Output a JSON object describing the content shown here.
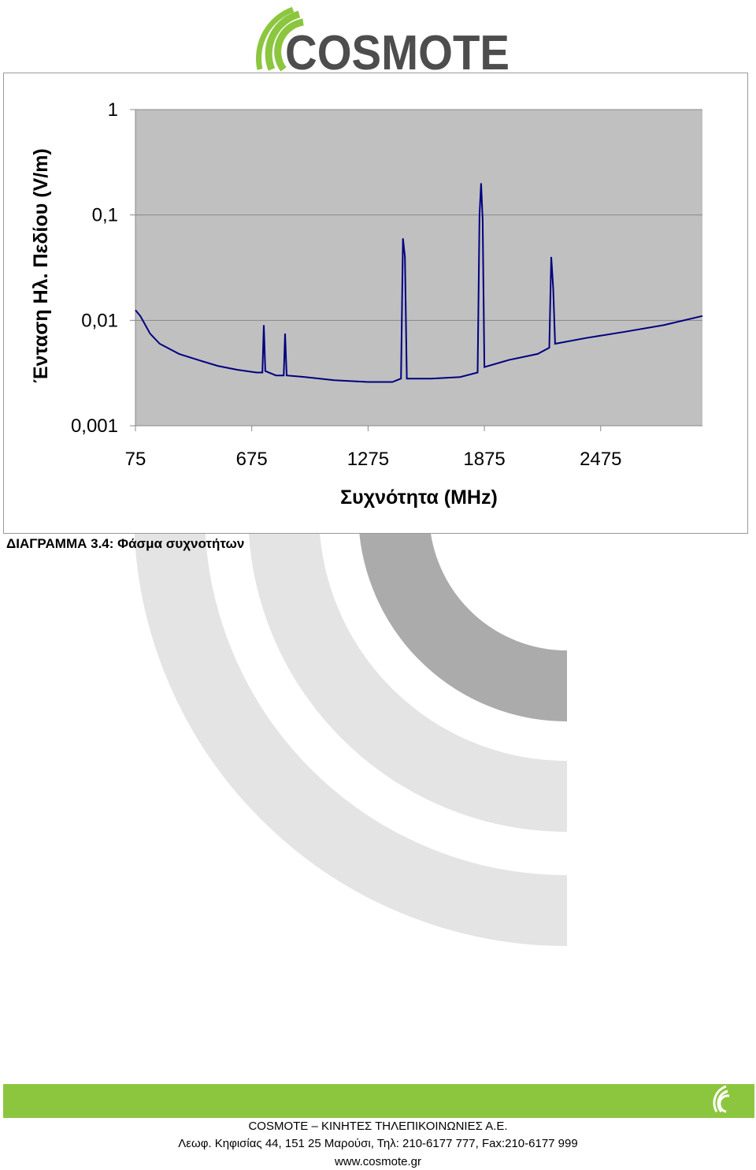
{
  "header": {
    "logo": "COSMOTE"
  },
  "chart_data": {
    "type": "line",
    "y_axis_label": "Ένταση Ηλ. Πεδίου (V/m)",
    "x_axis_label": "Συχνότητα (MHz)",
    "log_y": true,
    "grid": true,
    "xlim": [
      75,
      3000
    ],
    "xticks": [
      75,
      675,
      1275,
      1875,
      2475
    ],
    "ylim": [
      0.001,
      1
    ],
    "yticks": [
      {
        "value": 0.001,
        "label": "0,001"
      },
      {
        "value": 0.01,
        "label": "0,01"
      },
      {
        "value": 0.1,
        "label": "0,1"
      },
      1
    ],
    "x": [
      75,
      100,
      150,
      200,
      300,
      400,
      500,
      600,
      700,
      730,
      737,
      745,
      800,
      840,
      847,
      855,
      950,
      1100,
      1275,
      1400,
      1445,
      1455,
      1465,
      1475,
      1600,
      1750,
      1840,
      1850,
      1858,
      1866,
      1875,
      2000,
      2150,
      2210,
      2220,
      2230,
      2240,
      2400,
      2600,
      2800,
      3000
    ],
    "series": [
      {
        "color": "#000080",
        "values": [
          0.0125,
          0.011,
          0.0075,
          0.006,
          0.0048,
          0.0042,
          0.0037,
          0.0034,
          0.0032,
          0.0032,
          0.009,
          0.0033,
          0.003,
          0.003,
          0.0075,
          0.003,
          0.0029,
          0.0027,
          0.0026,
          0.0026,
          0.0028,
          0.06,
          0.04,
          0.0028,
          0.0028,
          0.0029,
          0.0032,
          0.1,
          0.2,
          0.09,
          0.0036,
          0.0042,
          0.0048,
          0.0055,
          0.04,
          0.02,
          0.006,
          0.0068,
          0.0078,
          0.009,
          0.011
        ]
      }
    ]
  },
  "caption": "ΔΙΑΓΡΑΜΜΑ 3.4: Φάσμα συχνοτήτων",
  "footer": {
    "company": "COSMOTE – ΚΙΝΗΤΕΣ ΤΗΛΕΠΙΚΟΙΝΩΝΙΕΣ Α.Ε.",
    "address": "Λεωφ. Κηφισίας 44, 151 25 Μαρούσι, Τηλ: 210-6177 777, Fax:210-6177 999",
    "website": "www.cosmote.gr"
  }
}
